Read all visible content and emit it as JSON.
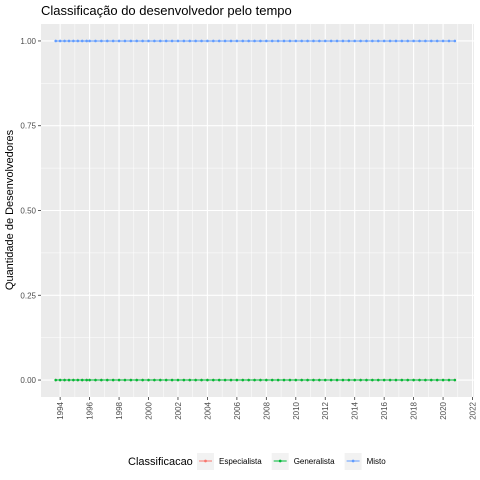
{
  "chart_data": {
    "type": "line",
    "title": "Classificação do desenvolvedor pelo tempo",
    "xlabel": "",
    "ylabel": "Quantidade de Desenvolvedores",
    "xlim": [
      1992.7,
      2022.1
    ],
    "ylim": [
      -0.05,
      1.05
    ],
    "x_ticks": [
      "1994",
      "1996",
      "1998",
      "2000",
      "2002",
      "2004",
      "2006",
      "2008",
      "2010",
      "2012",
      "2014",
      "2016",
      "2018",
      "2020",
      "2022"
    ],
    "y_ticks": [
      "0.00",
      "0.25",
      "0.50",
      "0.75",
      "1.00"
    ],
    "grid": true,
    "legend": {
      "title": "Classificacao",
      "placement": "bottom",
      "entries": [
        "Especialista",
        "Generalista",
        "Misto"
      ]
    },
    "x": [
      1993.7,
      1994.0,
      1994.3,
      1994.6,
      1994.9,
      1995.2,
      1995.5,
      1995.8,
      1996.0,
      1996.4,
      1996.8,
      1997.2,
      1997.6,
      1998.0,
      1998.4,
      1998.8,
      1999.2,
      1999.6,
      2000.0,
      2000.4,
      2000.8,
      2001.2,
      2001.6,
      2002.0,
      2002.4,
      2002.8,
      2003.2,
      2003.6,
      2004.0,
      2004.4,
      2004.8,
      2005.2,
      2005.6,
      2006.0,
      2006.4,
      2006.8,
      2007.2,
      2007.6,
      2008.0,
      2008.4,
      2008.8,
      2009.2,
      2009.6,
      2010.0,
      2010.4,
      2010.8,
      2011.2,
      2011.6,
      2012.0,
      2012.4,
      2012.8,
      2013.2,
      2013.6,
      2014.0,
      2014.4,
      2014.8,
      2015.2,
      2015.6,
      2016.0,
      2016.4,
      2016.8,
      2017.2,
      2017.6,
      2018.0,
      2018.4,
      2018.8,
      2019.2,
      2019.6,
      2020.0,
      2020.4,
      2020.8
    ],
    "series": [
      {
        "name": "Especialista",
        "color": "#F8766D",
        "value": 0
      },
      {
        "name": "Generalista",
        "color": "#00BA38",
        "value": 0
      },
      {
        "name": "Misto",
        "color": "#619CFF",
        "value": 1
      }
    ]
  }
}
